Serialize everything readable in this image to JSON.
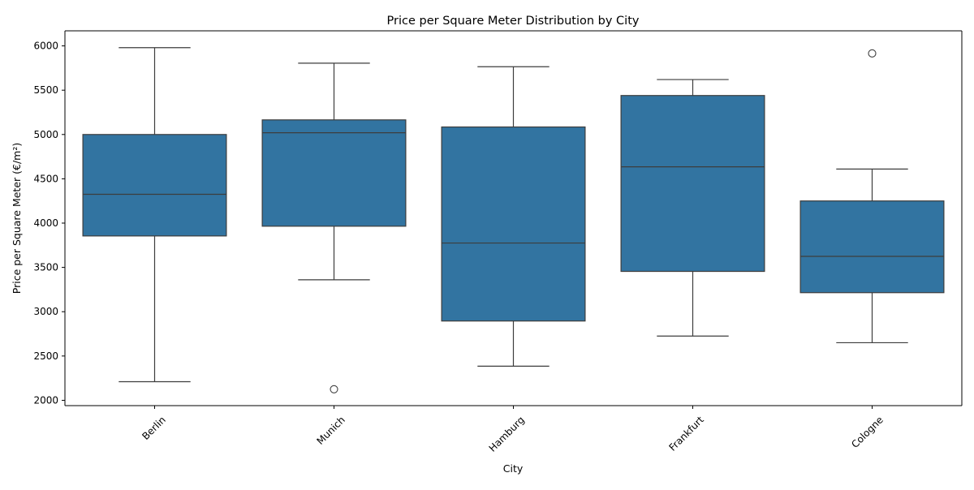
{
  "chart_data": {
    "type": "box",
    "title": "Price per Square Meter Distribution by City",
    "xlabel": "City",
    "ylabel": "Price per Square Meter (€/m²)",
    "ylim": [
      1940,
      6170
    ],
    "yticks": [
      2000,
      2500,
      3000,
      3500,
      4000,
      4500,
      5000,
      5500,
      6000
    ],
    "grid": false,
    "legend": "none",
    "x_tick_rotation_deg": 45,
    "colors": {
      "box_fill": "#3274a1",
      "line": "#3d3d3d",
      "axis": "#000000"
    },
    "categories": [
      "Berlin",
      "Munich",
      "Hamburg",
      "Frankfurt",
      "Cologne"
    ],
    "boxes": [
      {
        "category": "Berlin",
        "whisker_low": 2210,
        "q1": 3855,
        "median": 4325,
        "q3": 5000,
        "whisker_high": 5980,
        "outliers": []
      },
      {
        "category": "Munich",
        "whisker_low": 3360,
        "q1": 3965,
        "median": 5020,
        "q3": 5165,
        "whisker_high": 5805,
        "outliers": [
          2125
        ]
      },
      {
        "category": "Hamburg",
        "whisker_low": 2385,
        "q1": 2895,
        "median": 3775,
        "q3": 5085,
        "whisker_high": 5765,
        "outliers": []
      },
      {
        "category": "Frankfurt",
        "whisker_low": 2725,
        "q1": 3455,
        "median": 4635,
        "q3": 5440,
        "whisker_high": 5620,
        "outliers": []
      },
      {
        "category": "Cologne",
        "whisker_low": 2650,
        "q1": 3215,
        "median": 3625,
        "q3": 4250,
        "whisker_high": 4610,
        "outliers": [
          5915
        ]
      }
    ]
  }
}
